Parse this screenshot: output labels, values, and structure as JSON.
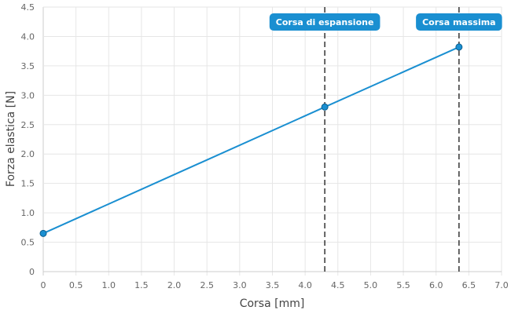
{
  "chart_data": {
    "type": "line",
    "title": "",
    "xlabel": "Corsa [mm]",
    "ylabel": "Forza elastica [N]",
    "xlim": [
      0,
      7
    ],
    "ylim": [
      0,
      4.5
    ],
    "x_ticks": [
      0,
      0.5,
      1,
      1.5,
      2,
      2.5,
      3,
      3.5,
      4,
      4.5,
      5,
      5.5,
      6,
      6.5,
      7
    ],
    "x_tick_labels": [
      "0",
      "0.5",
      "1.0",
      "1.5",
      "2.0",
      "2.5",
      "3.0",
      "3.5",
      "4.0",
      "4.5",
      "5.0",
      "5.5",
      "6.0",
      "6.5",
      "7.0"
    ],
    "y_ticks": [
      0,
      0.5,
      1,
      1.5,
      2,
      2.5,
      3,
      3.5,
      4,
      4.5
    ],
    "y_tick_labels": [
      "0",
      "0.5",
      "1.0",
      "1.5",
      "2.0",
      "2.5",
      "3.0",
      "3.5",
      "4.0",
      "4.5"
    ],
    "grid": true,
    "series": [
      {
        "color": "#1a8fd1",
        "points": [
          {
            "x": 0,
            "y": 0.65
          },
          {
            "x": 4.3,
            "y": 2.8
          },
          {
            "x": 6.35,
            "y": 3.82
          }
        ]
      }
    ],
    "annotations": [
      {
        "x": 4.3,
        "label": "Corsa di espansione",
        "color": "#1a8fd1"
      },
      {
        "x": 6.35,
        "label": "Corsa massima",
        "color": "#1a8fd1"
      }
    ]
  }
}
